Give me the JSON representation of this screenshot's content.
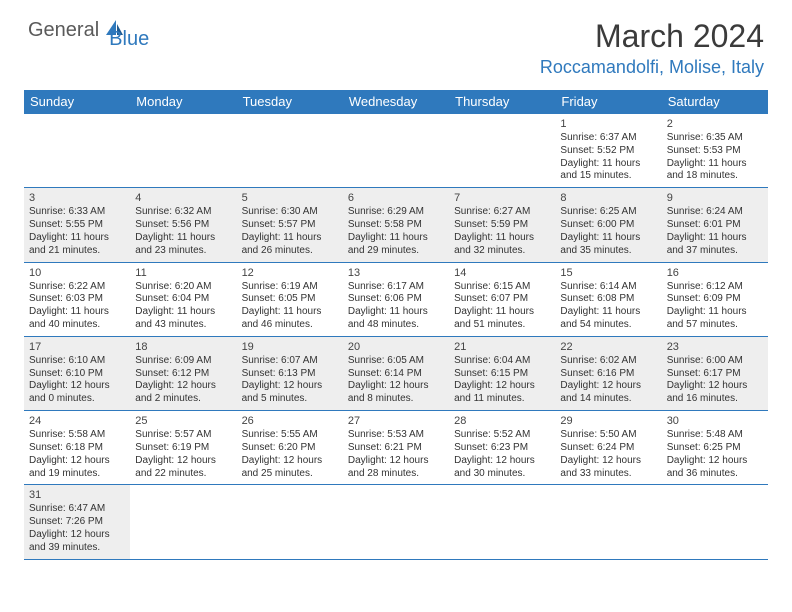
{
  "brand": {
    "general": "General",
    "blue": "Blue",
    "general_color": "#5a5a5a",
    "blue_color": "#2f79bd"
  },
  "title": "March 2024",
  "title_color": "#3b3b3b",
  "title_fontsize": 32,
  "location": "Roccamandolfi, Molise, Italy",
  "location_color": "#2f79bd",
  "day_header_bg": "#2f79bd",
  "day_header_fg": "#ffffff",
  "cell_shaded_bg": "#eeeeee",
  "row_border_color": "#2f79bd",
  "day_names": [
    "Sunday",
    "Monday",
    "Tuesday",
    "Wednesday",
    "Thursday",
    "Friday",
    "Saturday"
  ],
  "weeks": [
    [
      null,
      null,
      null,
      null,
      null,
      {
        "n": "1",
        "sr": "Sunrise: 6:37 AM",
        "ss": "Sunset: 5:52 PM",
        "dl1": "Daylight: 11 hours",
        "dl2": "and 15 minutes."
      },
      {
        "n": "2",
        "sr": "Sunrise: 6:35 AM",
        "ss": "Sunset: 5:53 PM",
        "dl1": "Daylight: 11 hours",
        "dl2": "and 18 minutes."
      }
    ],
    [
      {
        "n": "3",
        "sr": "Sunrise: 6:33 AM",
        "ss": "Sunset: 5:55 PM",
        "dl1": "Daylight: 11 hours",
        "dl2": "and 21 minutes."
      },
      {
        "n": "4",
        "sr": "Sunrise: 6:32 AM",
        "ss": "Sunset: 5:56 PM",
        "dl1": "Daylight: 11 hours",
        "dl2": "and 23 minutes."
      },
      {
        "n": "5",
        "sr": "Sunrise: 6:30 AM",
        "ss": "Sunset: 5:57 PM",
        "dl1": "Daylight: 11 hours",
        "dl2": "and 26 minutes."
      },
      {
        "n": "6",
        "sr": "Sunrise: 6:29 AM",
        "ss": "Sunset: 5:58 PM",
        "dl1": "Daylight: 11 hours",
        "dl2": "and 29 minutes."
      },
      {
        "n": "7",
        "sr": "Sunrise: 6:27 AM",
        "ss": "Sunset: 5:59 PM",
        "dl1": "Daylight: 11 hours",
        "dl2": "and 32 minutes."
      },
      {
        "n": "8",
        "sr": "Sunrise: 6:25 AM",
        "ss": "Sunset: 6:00 PM",
        "dl1": "Daylight: 11 hours",
        "dl2": "and 35 minutes."
      },
      {
        "n": "9",
        "sr": "Sunrise: 6:24 AM",
        "ss": "Sunset: 6:01 PM",
        "dl1": "Daylight: 11 hours",
        "dl2": "and 37 minutes."
      }
    ],
    [
      {
        "n": "10",
        "sr": "Sunrise: 6:22 AM",
        "ss": "Sunset: 6:03 PM",
        "dl1": "Daylight: 11 hours",
        "dl2": "and 40 minutes."
      },
      {
        "n": "11",
        "sr": "Sunrise: 6:20 AM",
        "ss": "Sunset: 6:04 PM",
        "dl1": "Daylight: 11 hours",
        "dl2": "and 43 minutes."
      },
      {
        "n": "12",
        "sr": "Sunrise: 6:19 AM",
        "ss": "Sunset: 6:05 PM",
        "dl1": "Daylight: 11 hours",
        "dl2": "and 46 minutes."
      },
      {
        "n": "13",
        "sr": "Sunrise: 6:17 AM",
        "ss": "Sunset: 6:06 PM",
        "dl1": "Daylight: 11 hours",
        "dl2": "and 48 minutes."
      },
      {
        "n": "14",
        "sr": "Sunrise: 6:15 AM",
        "ss": "Sunset: 6:07 PM",
        "dl1": "Daylight: 11 hours",
        "dl2": "and 51 minutes."
      },
      {
        "n": "15",
        "sr": "Sunrise: 6:14 AM",
        "ss": "Sunset: 6:08 PM",
        "dl1": "Daylight: 11 hours",
        "dl2": "and 54 minutes."
      },
      {
        "n": "16",
        "sr": "Sunrise: 6:12 AM",
        "ss": "Sunset: 6:09 PM",
        "dl1": "Daylight: 11 hours",
        "dl2": "and 57 minutes."
      }
    ],
    [
      {
        "n": "17",
        "sr": "Sunrise: 6:10 AM",
        "ss": "Sunset: 6:10 PM",
        "dl1": "Daylight: 12 hours",
        "dl2": "and 0 minutes."
      },
      {
        "n": "18",
        "sr": "Sunrise: 6:09 AM",
        "ss": "Sunset: 6:12 PM",
        "dl1": "Daylight: 12 hours",
        "dl2": "and 2 minutes."
      },
      {
        "n": "19",
        "sr": "Sunrise: 6:07 AM",
        "ss": "Sunset: 6:13 PM",
        "dl1": "Daylight: 12 hours",
        "dl2": "and 5 minutes."
      },
      {
        "n": "20",
        "sr": "Sunrise: 6:05 AM",
        "ss": "Sunset: 6:14 PM",
        "dl1": "Daylight: 12 hours",
        "dl2": "and 8 minutes."
      },
      {
        "n": "21",
        "sr": "Sunrise: 6:04 AM",
        "ss": "Sunset: 6:15 PM",
        "dl1": "Daylight: 12 hours",
        "dl2": "and 11 minutes."
      },
      {
        "n": "22",
        "sr": "Sunrise: 6:02 AM",
        "ss": "Sunset: 6:16 PM",
        "dl1": "Daylight: 12 hours",
        "dl2": "and 14 minutes."
      },
      {
        "n": "23",
        "sr": "Sunrise: 6:00 AM",
        "ss": "Sunset: 6:17 PM",
        "dl1": "Daylight: 12 hours",
        "dl2": "and 16 minutes."
      }
    ],
    [
      {
        "n": "24",
        "sr": "Sunrise: 5:58 AM",
        "ss": "Sunset: 6:18 PM",
        "dl1": "Daylight: 12 hours",
        "dl2": "and 19 minutes."
      },
      {
        "n": "25",
        "sr": "Sunrise: 5:57 AM",
        "ss": "Sunset: 6:19 PM",
        "dl1": "Daylight: 12 hours",
        "dl2": "and 22 minutes."
      },
      {
        "n": "26",
        "sr": "Sunrise: 5:55 AM",
        "ss": "Sunset: 6:20 PM",
        "dl1": "Daylight: 12 hours",
        "dl2": "and 25 minutes."
      },
      {
        "n": "27",
        "sr": "Sunrise: 5:53 AM",
        "ss": "Sunset: 6:21 PM",
        "dl1": "Daylight: 12 hours",
        "dl2": "and 28 minutes."
      },
      {
        "n": "28",
        "sr": "Sunrise: 5:52 AM",
        "ss": "Sunset: 6:23 PM",
        "dl1": "Daylight: 12 hours",
        "dl2": "and 30 minutes."
      },
      {
        "n": "29",
        "sr": "Sunrise: 5:50 AM",
        "ss": "Sunset: 6:24 PM",
        "dl1": "Daylight: 12 hours",
        "dl2": "and 33 minutes."
      },
      {
        "n": "30",
        "sr": "Sunrise: 5:48 AM",
        "ss": "Sunset: 6:25 PM",
        "dl1": "Daylight: 12 hours",
        "dl2": "and 36 minutes."
      }
    ],
    [
      {
        "n": "31",
        "sr": "Sunrise: 6:47 AM",
        "ss": "Sunset: 7:26 PM",
        "dl1": "Daylight: 12 hours",
        "dl2": "and 39 minutes."
      },
      null,
      null,
      null,
      null,
      null,
      null
    ]
  ]
}
